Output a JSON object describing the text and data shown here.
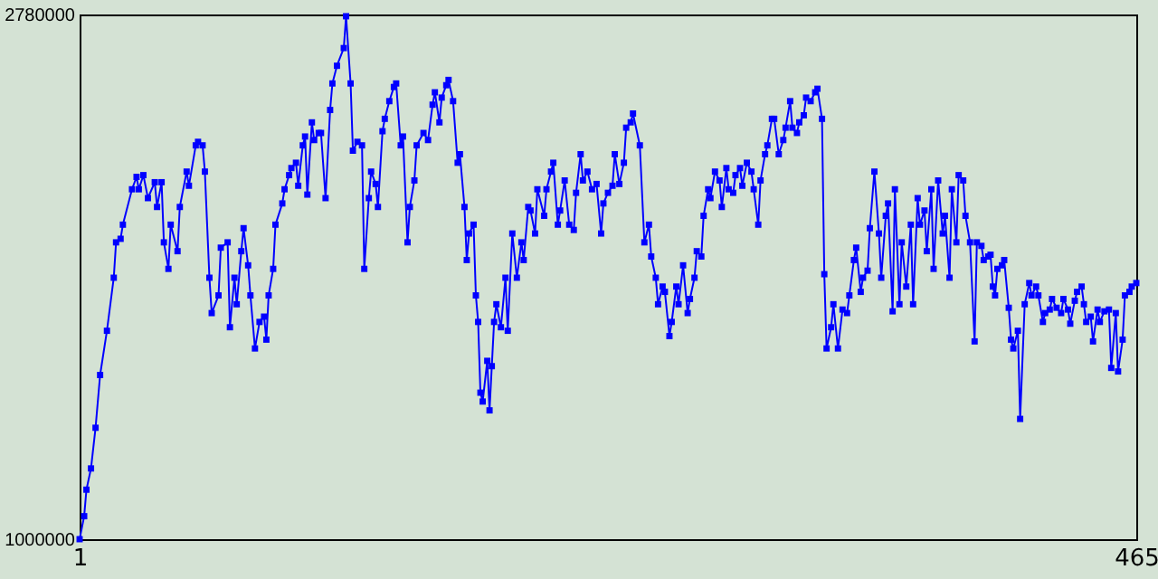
{
  "chart_data": {
    "type": "line",
    "xlim": [
      1,
      465
    ],
    "ylim": [
      1000000,
      2780000
    ],
    "xticks": [
      1,
      465
    ],
    "yticks": [
      1000000,
      2780000
    ],
    "grid": false,
    "marker": "square",
    "line_style": "solid",
    "x": [
      1,
      3,
      4,
      6,
      8,
      10,
      13,
      16,
      17,
      19,
      20,
      24,
      26,
      27,
      29,
      31,
      34,
      35,
      37,
      38,
      40,
      41,
      44,
      45,
      48,
      49,
      52,
      53,
      55,
      56,
      58,
      59,
      62,
      63,
      66,
      67,
      69,
      70,
      72,
      73,
      75,
      76,
      78,
      80,
      82,
      83,
      84,
      86,
      87,
      90,
      91,
      93,
      94,
      96,
      97,
      99,
      100,
      101,
      103,
      104,
      106,
      107,
      109,
      111,
      112,
      114,
      117,
      118,
      120,
      121,
      123,
      125,
      126,
      128,
      129,
      131,
      132,
      134,
      135,
      137,
      139,
      140,
      142,
      143,
      145,
      146,
      148,
      149,
      152,
      154,
      156,
      157,
      159,
      160,
      162,
      163,
      165,
      167,
      168,
      170,
      171,
      172,
      174,
      175,
      176,
      177,
      178,
      180,
      181,
      182,
      183,
      184,
      186,
      188,
      189,
      191,
      193,
      195,
      196,
      198,
      199,
      201,
      202,
      205,
      206,
      208,
      209,
      211,
      212,
      214,
      216,
      218,
      219,
      221,
      222,
      224,
      226,
      228,
      230,
      231,
      233,
      235,
      236,
      238,
      240,
      241,
      243,
      244,
      247,
      249,
      251,
      252,
      254,
      255,
      257,
      258,
      260,
      261,
      263,
      264,
      266,
      268,
      269,
      271,
      272,
      274,
      275,
      277,
      278,
      280,
      282,
      283,
      285,
      286,
      288,
      289,
      291,
      292,
      294,
      296,
      297,
      299,
      300,
      302,
      303,
      305,
      306,
      308,
      310,
      311,
      313,
      314,
      316,
      317,
      319,
      320,
      322,
      324,
      325,
      327,
      328,
      329,
      331,
      332,
      334,
      336,
      338,
      339,
      341,
      342,
      344,
      345,
      347,
      348,
      350,
      352,
      353,
      355,
      356,
      358,
      359,
      361,
      362,
      364,
      366,
      367,
      369,
      370,
      372,
      373,
      375,
      376,
      378,
      380,
      381,
      383,
      384,
      386,
      387,
      389,
      390,
      392,
      394,
      395,
      397,
      398,
      400,
      401,
      402,
      403,
      404,
      406,
      407,
      409,
      410,
      411,
      413,
      414,
      416,
      418,
      419,
      421,
      422,
      424,
      425,
      427,
      428,
      430,
      432,
      433,
      435,
      436,
      438,
      439,
      441,
      442,
      443,
      445,
      446,
      448,
      449,
      451,
      453,
      454,
      456,
      457,
      459,
      460,
      462,
      463,
      465
    ],
    "series": [
      {
        "color": "#0000ff",
        "values": [
          1000000,
          1078000,
          1168000,
          1240000,
          1378000,
          1557000,
          1707000,
          1887000,
          2007000,
          2019000,
          2067000,
          2187000,
          2229000,
          2187000,
          2235000,
          2157000,
          2211000,
          2127000,
          2211000,
          2007000,
          1917000,
          2067000,
          1977000,
          2127000,
          2247000,
          2199000,
          2336000,
          2348000,
          2336000,
          2247000,
          1887000,
          1767000,
          1827000,
          1989000,
          2007000,
          1719000,
          1887000,
          1797000,
          1977000,
          2055000,
          1929000,
          1827000,
          1647000,
          1737000,
          1755000,
          1677000,
          1827000,
          1917000,
          2067000,
          2139000,
          2187000,
          2235000,
          2259000,
          2277000,
          2199000,
          2336000,
          2366000,
          2169000,
          2414000,
          2354000,
          2378000,
          2378000,
          2157000,
          2456000,
          2546000,
          2606000,
          2666000,
          2774000,
          2546000,
          2318000,
          2348000,
          2336000,
          1917000,
          2157000,
          2247000,
          2205000,
          2127000,
          2384000,
          2426000,
          2486000,
          2534000,
          2546000,
          2336000,
          2366000,
          2007000,
          2127000,
          2217000,
          2336000,
          2378000,
          2354000,
          2474000,
          2516000,
          2414000,
          2498000,
          2540000,
          2558000,
          2486000,
          2277000,
          2306000,
          2127000,
          1947000,
          2037000,
          2067000,
          1827000,
          1737000,
          1497000,
          1467000,
          1605000,
          1437000,
          1587000,
          1737000,
          1797000,
          1719000,
          1887000,
          1707000,
          2037000,
          1887000,
          2007000,
          1947000,
          2127000,
          2115000,
          2037000,
          2187000,
          2097000,
          2187000,
          2247000,
          2277000,
          2067000,
          2115000,
          2217000,
          2067000,
          2049000,
          2175000,
          2306000,
          2217000,
          2247000,
          2187000,
          2205000,
          2037000,
          2139000,
          2175000,
          2199000,
          2306000,
          2205000,
          2277000,
          2396000,
          2414000,
          2444000,
          2336000,
          2007000,
          2067000,
          1959000,
          1887000,
          1797000,
          1857000,
          1839000,
          1689000,
          1737000,
          1857000,
          1797000,
          1929000,
          1767000,
          1815000,
          1887000,
          1977000,
          1959000,
          2097000,
          2187000,
          2157000,
          2247000,
          2217000,
          2127000,
          2259000,
          2187000,
          2175000,
          2235000,
          2259000,
          2199000,
          2277000,
          2247000,
          2187000,
          2067000,
          2217000,
          2306000,
          2336000,
          2426000,
          2426000,
          2306000,
          2354000,
          2396000,
          2486000,
          2396000,
          2378000,
          2414000,
          2438000,
          2498000,
          2486000,
          2516000,
          2528000,
          2426000,
          1899000,
          1647000,
          1719000,
          1797000,
          1647000,
          1779000,
          1767000,
          1827000,
          1947000,
          1989000,
          1839000,
          1887000,
          1911000,
          2055000,
          2247000,
          2037000,
          1887000,
          2097000,
          2139000,
          1773000,
          2187000,
          1797000,
          2007000,
          1857000,
          2067000,
          1797000,
          2157000,
          2067000,
          2115000,
          1977000,
          2187000,
          1917000,
          2217000,
          2037000,
          2097000,
          1887000,
          2187000,
          2007000,
          2235000,
          2217000,
          2097000,
          2007000,
          1671000,
          2007000,
          1995000,
          1947000,
          1959000,
          1965000,
          1857000,
          1827000,
          1917000,
          1929000,
          1947000,
          1785000,
          1677000,
          1647000,
          1707000,
          1408000,
          1797000,
          1869000,
          1827000,
          1857000,
          1827000,
          1737000,
          1767000,
          1779000,
          1815000,
          1785000,
          1767000,
          1815000,
          1779000,
          1731000,
          1809000,
          1839000,
          1857000,
          1797000,
          1737000,
          1755000,
          1671000,
          1779000,
          1737000,
          1773000,
          1779000,
          1581000,
          1767000,
          1569000,
          1677000,
          1827000,
          1839000,
          1857000,
          1869000
        ]
      }
    ]
  }
}
